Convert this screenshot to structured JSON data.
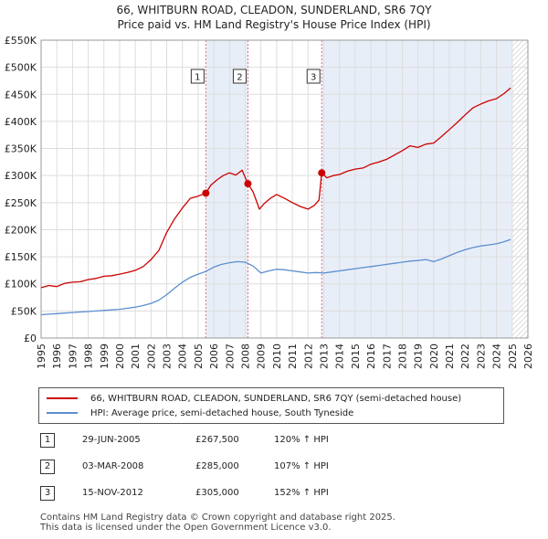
{
  "title_line1": "66, WHITBURN ROAD, CLEADON, SUNDERLAND, SR6 7QY",
  "title_line2": "Price paid vs. HM Land Registry's House Price Index (HPI)",
  "chart_data": {
    "type": "line",
    "xlim": [
      1995,
      2026
    ],
    "ylim": [
      0,
      550000
    ],
    "y_ticks": [
      0,
      50000,
      100000,
      150000,
      200000,
      250000,
      300000,
      350000,
      400000,
      450000,
      500000,
      550000
    ],
    "y_tick_labels": [
      "£0",
      "£50K",
      "£100K",
      "£150K",
      "£200K",
      "£250K",
      "£300K",
      "£350K",
      "£400K",
      "£450K",
      "£500K",
      "£550K"
    ],
    "x_ticks": [
      1995,
      1996,
      1997,
      1998,
      1999,
      2000,
      2001,
      2002,
      2003,
      2004,
      2005,
      2006,
      2007,
      2008,
      2009,
      2010,
      2011,
      2012,
      2013,
      2014,
      2015,
      2016,
      2017,
      2018,
      2019,
      2020,
      2021,
      2022,
      2023,
      2024,
      2025,
      2026
    ],
    "x_tick_labels": [
      "1995",
      "1996",
      "1997",
      "1998",
      "1999",
      "2000",
      "2001",
      "2002",
      "2003",
      "2004",
      "2005",
      "2006",
      "2007",
      "2008",
      "2009",
      "2010",
      "2011",
      "2012",
      "2013",
      "2014",
      "2015",
      "2016",
      "2017",
      "2018",
      "2019",
      "2020",
      "2021",
      "2022",
      "2023",
      "2024",
      "2025",
      "2026"
    ],
    "grid": true,
    "shaded_ranges": [
      [
        2005.49,
        2008.17
      ],
      [
        2012.87,
        2025.0
      ]
    ],
    "hatched_from": 2025.0,
    "series": [
      {
        "name": "66, WHITBURN ROAD, CLEADON, SUNDERLAND, SR6 7QY (semi-detached house)",
        "color": "#cc0000",
        "x": [
          1995.0,
          1995.5,
          1996.0,
          1996.5,
          1997.0,
          1997.5,
          1998.0,
          1998.5,
          1999.0,
          1999.5,
          2000.0,
          2000.5,
          2001.0,
          2001.5,
          2002.0,
          2002.5,
          2003.0,
          2003.5,
          2004.0,
          2004.5,
          2005.0,
          2005.49,
          2005.8,
          2006.2,
          2006.6,
          2007.0,
          2007.4,
          2007.8,
          2008.17,
          2008.5,
          2008.9,
          2009.2,
          2009.6,
          2010.0,
          2010.5,
          2011.0,
          2011.5,
          2012.0,
          2012.4,
          2012.7,
          2012.87,
          2013.2,
          2013.6,
          2014.0,
          2014.5,
          2015.0,
          2015.5,
          2016.0,
          2016.5,
          2017.0,
          2017.5,
          2018.0,
          2018.5,
          2019.0,
          2019.5,
          2020.0,
          2020.5,
          2021.0,
          2021.5,
          2022.0,
          2022.5,
          2023.0,
          2023.5,
          2024.0,
          2024.5,
          2024.9
        ],
        "y": [
          93000,
          97000,
          95000,
          101000,
          103000,
          104000,
          108000,
          110000,
          114000,
          115000,
          118000,
          121000,
          125000,
          132000,
          145000,
          162000,
          195000,
          220000,
          240000,
          258000,
          262000,
          267500,
          282000,
          292000,
          300000,
          305000,
          301000,
          310000,
          285000,
          270000,
          238000,
          248000,
          258000,
          265000,
          258000,
          250000,
          243000,
          238000,
          245000,
          255000,
          305000,
          296000,
          300000,
          302000,
          308000,
          312000,
          314000,
          321000,
          325000,
          330000,
          338000,
          346000,
          355000,
          352000,
          358000,
          360000,
          372000,
          385000,
          398000,
          412000,
          425000,
          432000,
          438000,
          442000,
          452000,
          462000
        ]
      },
      {
        "name": "HPI: Average price, semi-detached house, South Tyneside",
        "color": "#5b8fd0",
        "x": [
          1995.0,
          1995.5,
          1996.0,
          1996.5,
          1997.0,
          1997.5,
          1998.0,
          1998.5,
          1999.0,
          1999.5,
          2000.0,
          2000.5,
          2001.0,
          2001.5,
          2002.0,
          2002.5,
          2003.0,
          2003.5,
          2004.0,
          2004.5,
          2005.0,
          2005.5,
          2006.0,
          2006.5,
          2007.0,
          2007.5,
          2008.0,
          2008.5,
          2009.0,
          2009.5,
          2010.0,
          2010.5,
          2011.0,
          2011.5,
          2012.0,
          2012.5,
          2013.0,
          2013.5,
          2014.0,
          2014.5,
          2015.0,
          2015.5,
          2016.0,
          2016.5,
          2017.0,
          2017.5,
          2018.0,
          2018.5,
          2019.0,
          2019.5,
          2020.0,
          2020.5,
          2021.0,
          2021.5,
          2022.0,
          2022.5,
          2023.0,
          2023.5,
          2024.0,
          2024.5,
          2024.9
        ],
        "y": [
          43000,
          44000,
          45000,
          46000,
          47000,
          48000,
          49000,
          50000,
          51000,
          52000,
          53000,
          55000,
          57000,
          60000,
          64000,
          70000,
          80000,
          92000,
          103000,
          112000,
          118000,
          123000,
          131000,
          136000,
          139000,
          141000,
          140000,
          133000,
          120000,
          124000,
          127000,
          126000,
          124000,
          122000,
          120000,
          121000,
          120000,
          122000,
          124000,
          126000,
          128000,
          130000,
          132000,
          134000,
          136000,
          138000,
          140000,
          142000,
          143000,
          145000,
          141000,
          146000,
          152000,
          158000,
          163000,
          167000,
          170000,
          172000,
          174000,
          178000,
          182000
        ]
      }
    ],
    "sale_markers": [
      {
        "label": "1",
        "x": 2005.49,
        "y": 267500
      },
      {
        "label": "2",
        "x": 2008.17,
        "y": 285000
      },
      {
        "label": "3",
        "x": 2012.87,
        "y": 305000
      }
    ]
  },
  "legend": {
    "item1": "66, WHITBURN ROAD, CLEADON, SUNDERLAND, SR6 7QY (semi-detached house)",
    "item2": "HPI: Average price, semi-detached house, South Tyneside",
    "item1_color": "#cc0000",
    "item2_color": "#5b8fd0"
  },
  "sales": [
    {
      "num": "1",
      "date": "29-JUN-2005",
      "price": "£267,500",
      "hpi": "120% ↑ HPI"
    },
    {
      "num": "2",
      "date": "03-MAR-2008",
      "price": "£285,000",
      "hpi": "107% ↑ HPI"
    },
    {
      "num": "3",
      "date": "15-NOV-2012",
      "price": "£305,000",
      "hpi": "152% ↑ HPI"
    }
  ],
  "footer_line1": "Contains HM Land Registry data © Crown copyright and database right 2025.",
  "footer_line2": "This data is licensed under the Open Government Licence v3.0."
}
